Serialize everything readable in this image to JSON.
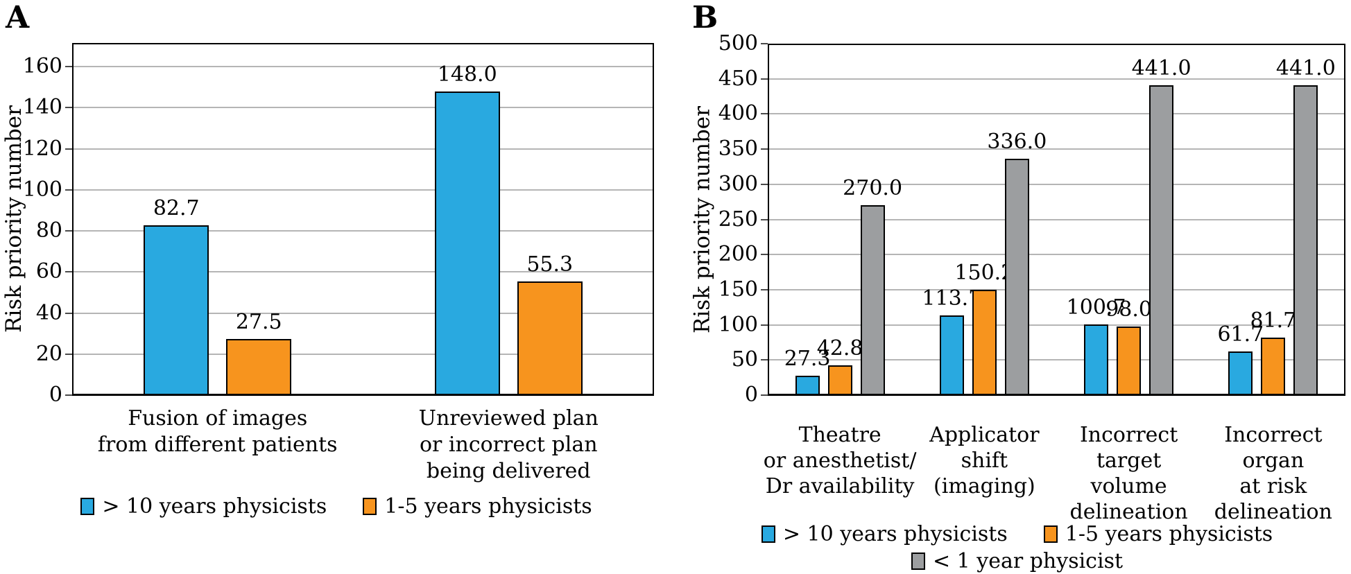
{
  "figure": {
    "background_color": "#ffffff",
    "bar_outline_color": "#000000",
    "gridline_color": "#b5b5b5",
    "frame_color": "#000000"
  },
  "chart_data": [
    {
      "panel_label": "A",
      "type": "bar",
      "title": "",
      "xlabel": "",
      "ylabel": "Risk priority number",
      "ylim": [
        0,
        171.5
      ],
      "yticks": [
        0,
        20,
        40,
        60,
        80,
        100,
        120,
        140,
        160
      ],
      "grid": true,
      "legend_position": "bottom",
      "categories": [
        {
          "lines": [
            "Fusion of images",
            "from different patients"
          ]
        },
        {
          "lines": [
            "Unreviewed plan",
            "or incorrect plan",
            "being delivered"
          ]
        }
      ],
      "series": [
        {
          "name": "> 10 years physicists",
          "color": "#29A9E0",
          "values": [
            82.7,
            148.0
          ]
        },
        {
          "name": "1-5 years physicists",
          "color": "#F7941E",
          "values": [
            27.5,
            55.3
          ]
        }
      ],
      "value_labels": [
        [
          "82.7",
          "148.0"
        ],
        [
          "27.5",
          "55.3"
        ]
      ],
      "legend_rows": [
        [
          0,
          1
        ]
      ]
    },
    {
      "panel_label": "B",
      "type": "bar",
      "title": "",
      "xlabel": "",
      "ylabel": "Risk priority number",
      "ylim": [
        0,
        500
      ],
      "yticks": [
        0,
        50,
        100,
        150,
        200,
        250,
        300,
        350,
        400,
        450,
        500
      ],
      "grid": true,
      "legend_position": "bottom",
      "categories": [
        {
          "lines": [
            "Theatre",
            "or anesthetist/",
            "Dr availability"
          ]
        },
        {
          "lines": [
            "Applicator",
            "shift",
            "(imaging)"
          ]
        },
        {
          "lines": [
            "Incorrect",
            "target",
            "volume",
            "delineation"
          ]
        },
        {
          "lines": [
            "Incorrect",
            "organ",
            "at risk",
            "delineation"
          ]
        }
      ],
      "series": [
        {
          "name": "> 10 years physicists",
          "color": "#29A9E0",
          "values": [
            27.3,
            113.7,
            100.7,
            61.7
          ]
        },
        {
          "name": "1-5 years physicists",
          "color": "#F7941E",
          "values": [
            42.8,
            150.2,
            98.0,
            81.7
          ]
        },
        {
          "name": "< 1 year physicist",
          "color": "#9C9EA0",
          "values": [
            270.0,
            336.0,
            441.0,
            441.0
          ]
        }
      ],
      "value_labels": [
        [
          "27.3",
          "113.7",
          "100.7",
          "61.7"
        ],
        [
          "42.8",
          "150.2",
          "98.0",
          "81.7"
        ],
        [
          "270.0",
          "336.0",
          "441.0",
          "441.0"
        ]
      ],
      "legend_rows": [
        [
          0,
          1
        ],
        [
          2
        ]
      ]
    }
  ]
}
